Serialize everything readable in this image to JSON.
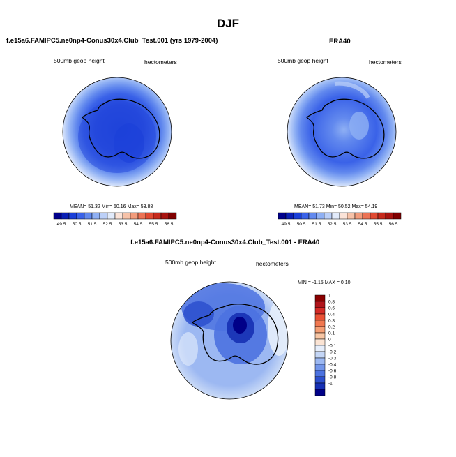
{
  "page": {
    "title": "DJF"
  },
  "panels": {
    "model": {
      "title": "f.e15a6.FAMIPC5.ne0np4-Conus30x4.Club_Test.001 (yrs 1979-2004)",
      "left_label": "500mb geop height",
      "right_label": "hectometers",
      "stats": "MEAN=  51.32  Min=  50.16  Max=  53.88"
    },
    "obs": {
      "title": "ERA40",
      "left_label": "500mb geop height",
      "right_label": "hectometers",
      "stats": "MEAN=  51.73  Min=  50.52  Max=  54.19"
    },
    "diff": {
      "title": "f.e15a6.FAMIPC5.ne0np4-Conus30x4.Club_Test.001 - ERA40",
      "left_label": "500mb geop height",
      "right_label": "hectometers",
      "stats": "MIN =  -1.15 MAX =   0.10"
    }
  },
  "chart_data": [
    {
      "type": "heatmap",
      "title": "f.e15a6.FAMIPC5.ne0np4-Conus30x4.Club_Test.001 (yrs 1979-2004)",
      "variable": "500mb geop height",
      "units": "hectometers",
      "projection": "south polar stereographic",
      "mean": 51.32,
      "min": 50.16,
      "max": 53.88,
      "colorbar_ticks": [
        "49.5",
        "50.5",
        "51.5",
        "52.5",
        "53.5",
        "54.5",
        "55.5",
        "56.5"
      ]
    },
    {
      "type": "heatmap",
      "title": "ERA40",
      "variable": "500mb geop height",
      "units": "hectometers",
      "projection": "south polar stereographic",
      "mean": 51.73,
      "min": 50.52,
      "max": 54.19,
      "colorbar_ticks": [
        "49.5",
        "50.5",
        "51.5",
        "52.5",
        "53.5",
        "54.5",
        "55.5",
        "56.5"
      ]
    },
    {
      "type": "heatmap",
      "title": "f.e15a6.FAMIPC5.ne0np4-Conus30x4.Club_Test.001 - ERA40",
      "variable": "500mb geop height",
      "units": "hectometers",
      "projection": "south polar stereographic",
      "min": -1.15,
      "max": 0.1,
      "colorbar_ticks": [
        "1",
        "0.8",
        "0.6",
        "0.4",
        "0.3",
        "0.2",
        "0.1",
        "0",
        "-0.1",
        "-0.2",
        "-0.3",
        "-0.4",
        "-0.6",
        "-0.8",
        "-1"
      ]
    }
  ],
  "colors": {
    "abs_colorbar": [
      "#00008b",
      "#0a1fb4",
      "#1a3fd8",
      "#3a62e8",
      "#6289ee",
      "#8fb0f4",
      "#bcd0f8",
      "#e2ebfb",
      "#fbe3d8",
      "#f7c2a8",
      "#f29c7c",
      "#ec7355",
      "#e04a32",
      "#c62a1c",
      "#a81410",
      "#800000"
    ],
    "diff_colorbar": [
      "#8b0000",
      "#b0141a",
      "#d42a26",
      "#ea5034",
      "#f07850",
      "#f49e74",
      "#f8c6a4",
      "#fbe4d4",
      "#e6eefb",
      "#c4d6f6",
      "#9cb8f2",
      "#7396ea",
      "#4c72e0",
      "#2c4fce",
      "#1630b4",
      "#000088"
    ]
  }
}
